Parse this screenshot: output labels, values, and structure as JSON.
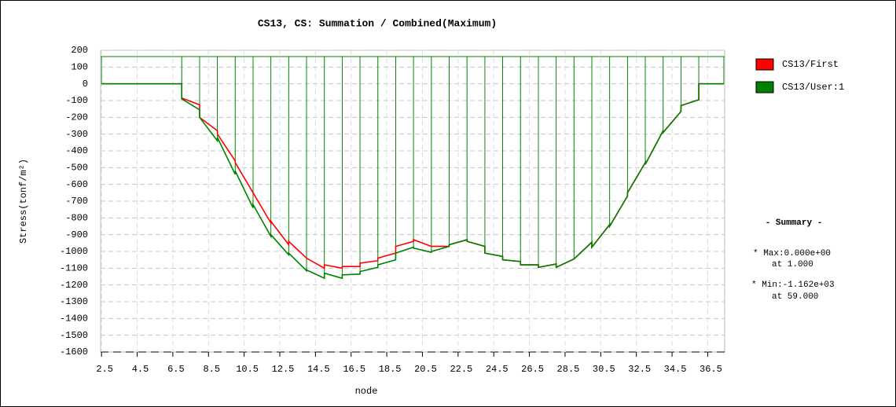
{
  "chart_data": {
    "type": "line",
    "title": "CS13, CS: Summation / Combined(Maximum)",
    "x_label": "node",
    "y_label": "Stress(tonf/m²)",
    "x": [
      2.5,
      7,
      7,
      8,
      8,
      9,
      9,
      10,
      10,
      11,
      11,
      12,
      12,
      13,
      13,
      14,
      14,
      15,
      15,
      16,
      16,
      17,
      17,
      18,
      18,
      19,
      19,
      20,
      20,
      21,
      21,
      22,
      22,
      23,
      23,
      24,
      24,
      25,
      25,
      26,
      26,
      27,
      27,
      28,
      28,
      29,
      29,
      30,
      30,
      31,
      31,
      32,
      32,
      33,
      33,
      34,
      34,
      35,
      35,
      36,
      36,
      37.4
    ],
    "series": [
      {
        "name": "CS13/First",
        "color": "#ff0000",
        "values": [
          0,
          0,
          -85,
          -125,
          -200,
          -280,
          -300,
          -460,
          -470,
          -650,
          -650,
          -830,
          -820,
          -960,
          -940,
          -1040,
          -1040,
          -1100,
          -1080,
          -1100,
          -1090,
          -1090,
          -1070,
          -1055,
          -1040,
          -1010,
          -970,
          -940,
          -930,
          -970,
          -970,
          -970,
          -960,
          -930,
          -940,
          -970,
          -1010,
          -1030,
          -1050,
          -1060,
          -1080,
          -1080,
          -1095,
          -1075,
          -1095,
          -1045,
          -1045,
          -945,
          -975,
          -840,
          -850,
          -670,
          -650,
          -470,
          -480,
          -280,
          -290,
          -165,
          -130,
          -95,
          0,
          0
        ]
      },
      {
        "name": "CS13/User:1",
        "color": "#008000",
        "values": [
          0,
          0,
          -90,
          -155,
          -200,
          -340,
          -320,
          -540,
          -520,
          -740,
          -720,
          -910,
          -900,
          -1020,
          -1010,
          -1115,
          -1110,
          -1160,
          -1130,
          -1160,
          -1140,
          -1135,
          -1120,
          -1095,
          -1080,
          -1050,
          -1010,
          -975,
          -980,
          -1005,
          -1000,
          -970,
          -960,
          -930,
          -940,
          -970,
          -1010,
          -1030,
          -1050,
          -1060,
          -1080,
          -1080,
          -1095,
          -1075,
          -1095,
          -1045,
          -1045,
          -945,
          -975,
          -840,
          -850,
          -670,
          -650,
          -470,
          -480,
          -280,
          -290,
          -165,
          -130,
          -95,
          0,
          0
        ]
      }
    ],
    "xlim": [
      2.45,
      37.45
    ],
    "xticks": [
      2.5,
      4.5,
      6.5,
      8.5,
      10.5,
      12.5,
      14.5,
      16.5,
      18.5,
      20.5,
      22.5,
      24.5,
      26.5,
      28.5,
      30.5,
      32.5,
      34.5,
      36.5
    ],
    "ylim": [
      -1600,
      200
    ],
    "yticks": [
      200,
      100,
      0,
      -100,
      -200,
      -300,
      -400,
      -500,
      -600,
      -700,
      -800,
      -900,
      -1000,
      -1100,
      -1200,
      -1300,
      -1400,
      -1500,
      -1600
    ],
    "grid": true,
    "legend": "right",
    "summary": {
      "title": "- Summary -",
      "lines": [
        "* Max:0.000e+00",
        "at  1.000",
        "* Min:-1.162e+03",
        "at 59.000"
      ]
    }
  }
}
